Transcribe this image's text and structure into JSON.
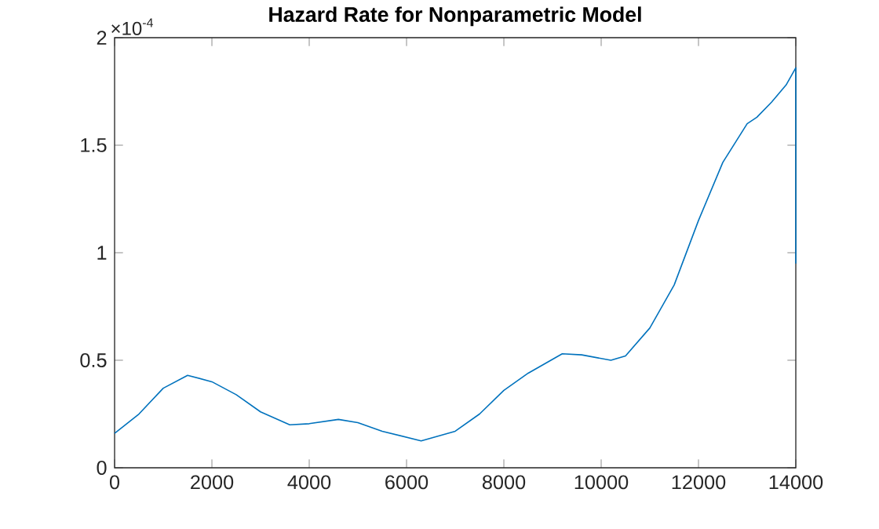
{
  "chart_data": {
    "type": "line",
    "title": "Hazard Rate for Nonparametric Model",
    "annotations": [
      "×10$^{-4}$"
    ],
    "x": [
      0,
      500,
      1000,
      1500,
      2000,
      2500,
      3000,
      3600,
      4000,
      4600,
      5000,
      5500,
      6300,
      7000,
      7500,
      8000,
      8500,
      9200,
      9600,
      10200,
      10500,
      11000,
      11500,
      12000,
      12500,
      13000,
      13200,
      13500,
      13800,
      14000,
      14000
    ],
    "series": [
      {
        "color": "#0072bd",
        "values": [
          0.16,
          0.25,
          0.37,
          0.43,
          0.4,
          0.34,
          0.26,
          0.2,
          0.205,
          0.225,
          0.21,
          0.17,
          0.125,
          0.17,
          0.25,
          0.36,
          0.44,
          0.53,
          0.525,
          0.5,
          0.52,
          0.65,
          0.85,
          1.15,
          1.42,
          1.6,
          1.63,
          1.7,
          1.78,
          1.86,
          0.95
        ]
      }
    ],
    "xlim": [
      0,
      14000
    ],
    "ylim": [
      0,
      2
    ],
    "xticks": [
      0,
      2000,
      4000,
      6000,
      8000,
      10000,
      12000,
      14000
    ],
    "yticks": [
      0,
      0.5,
      1,
      1.5,
      2
    ],
    "grid": false,
    "marker": "none",
    "line_style": "solid"
  }
}
